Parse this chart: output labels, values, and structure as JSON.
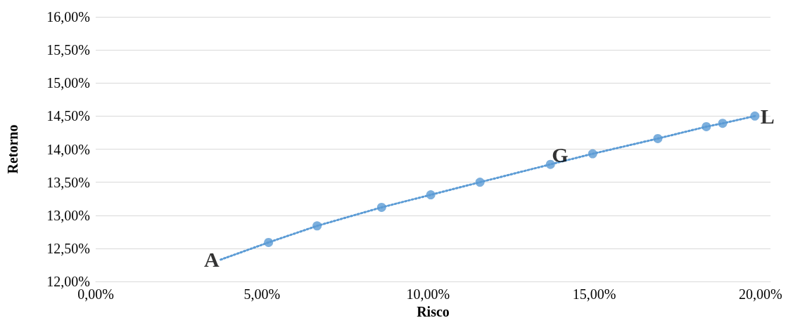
{
  "chart_data": {
    "type": "scatter",
    "xlabel": "Risco",
    "ylabel": "Retorno",
    "series": [
      {
        "color": "#5b9bd5",
        "marker": "circle",
        "x": [
          5.2,
          6.66,
          8.6,
          10.08,
          11.56,
          13.68,
          14.95,
          16.91,
          18.37,
          18.86,
          19.83
        ],
        "values": [
          12.59,
          12.84,
          13.12,
          13.31,
          13.5,
          13.77,
          13.93,
          14.16,
          14.34,
          14.39,
          14.5
        ]
      },
      {
        "type": "line",
        "color": "#5b9bd5",
        "marker": "none",
        "line_style": "dotted",
        "x": [
          3.76,
          5.2,
          6.66,
          8.6,
          10.08,
          11.56,
          13.68,
          14.95,
          16.91,
          18.37,
          18.86,
          19.83
        ],
        "values": [
          12.33,
          12.59,
          12.84,
          13.12,
          13.31,
          13.5,
          13.77,
          13.93,
          14.16,
          14.34,
          14.39,
          14.5
        ]
      }
    ],
    "annotations": [
      {
        "text": "A",
        "x": 3.76,
        "y": 12.33
      },
      {
        "text": "G",
        "x": 13.68,
        "y": 13.77
      },
      {
        "text": "L",
        "x": 19.83,
        "y": 14.5
      }
    ],
    "xlim": [
      0,
      20.3
    ],
    "xticks": [
      {
        "value": 0,
        "label": "0,00%"
      },
      {
        "value": 5,
        "label": "5,00%"
      },
      {
        "value": 10,
        "label": "10,00%"
      },
      {
        "value": 15,
        "label": "15,00%"
      },
      {
        "value": 20,
        "label": "20,00%"
      }
    ],
    "ylim": [
      12,
      16
    ],
    "yticks": [
      {
        "value": 12,
        "label": "12,00%"
      },
      {
        "value": 12.5,
        "label": "12,50%"
      },
      {
        "value": 13,
        "label": "13,00%"
      },
      {
        "value": 13.5,
        "label": "13,50%"
      },
      {
        "value": 14,
        "label": "14,00%"
      },
      {
        "value": 14.5,
        "label": "14,50%"
      },
      {
        "value": 15,
        "label": "15,00%"
      },
      {
        "value": 15.5,
        "label": "15,50%"
      },
      {
        "value": 16,
        "label": "16,00%"
      }
    ],
    "grid": "y"
  }
}
